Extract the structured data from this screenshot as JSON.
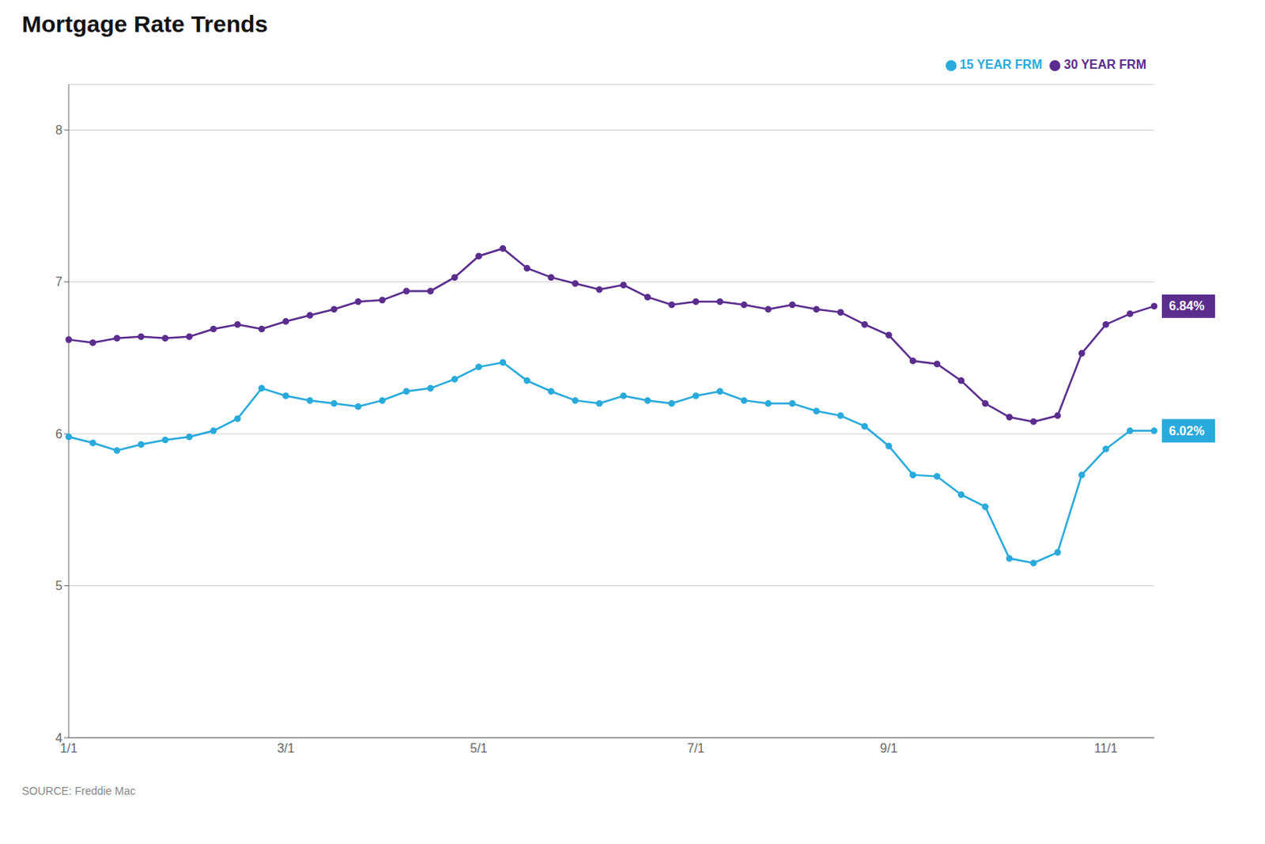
{
  "chart_data": {
    "type": "line",
    "title": "Mortgage Rate Trends",
    "source": "SOURCE: Freddie Mac",
    "categories": [
      "1/1",
      null,
      null,
      null,
      null,
      null,
      null,
      null,
      null,
      "3/1",
      null,
      null,
      null,
      null,
      null,
      null,
      null,
      "5/1",
      null,
      null,
      null,
      null,
      null,
      null,
      null,
      null,
      "7/1",
      null,
      null,
      null,
      null,
      null,
      null,
      null,
      "9/1",
      null,
      null,
      null,
      null,
      null,
      null,
      null,
      null,
      "11/1",
      null,
      null
    ],
    "ylim": [
      4,
      8.3
    ],
    "yticks": [
      4,
      5,
      6,
      7,
      8
    ],
    "grid": true,
    "legend": "top right",
    "series": [
      {
        "name": "30 YEAR FRM",
        "color": "#5B2D8E",
        "marker": "circle",
        "values": [
          6.62,
          6.6,
          6.63,
          6.64,
          6.63,
          6.64,
          6.69,
          6.72,
          6.69,
          6.74,
          6.78,
          6.82,
          6.87,
          6.88,
          6.94,
          6.94,
          7.03,
          7.17,
          7.22,
          7.09,
          7.03,
          6.99,
          6.95,
          6.98,
          6.9,
          6.85,
          6.87,
          6.87,
          6.85,
          6.82,
          6.85,
          6.82,
          6.8,
          6.72,
          6.65,
          6.48,
          6.46,
          6.35,
          6.2,
          6.11,
          6.08,
          6.12,
          6.53,
          6.72,
          6.79,
          6.84
        ],
        "value_labels": [
          null,
          null,
          null,
          null,
          null,
          null,
          null,
          null,
          null,
          null,
          null,
          null,
          null,
          null,
          null,
          null,
          null,
          null,
          null,
          null,
          null,
          null,
          null,
          null,
          null,
          null,
          null,
          null,
          null,
          null,
          null,
          null,
          null,
          null,
          null,
          null,
          null,
          null,
          null,
          null,
          null,
          null,
          null,
          null,
          null,
          "6.84%"
        ]
      },
      {
        "name": "15 YEAR FRM",
        "color": "#29AADC",
        "marker": "circle",
        "values": [
          5.98,
          5.94,
          5.89,
          5.93,
          5.96,
          5.98,
          6.02,
          6.1,
          6.3,
          6.25,
          6.22,
          6.2,
          6.18,
          6.22,
          6.28,
          6.3,
          6.36,
          6.44,
          6.47,
          6.35,
          6.28,
          6.22,
          6.2,
          6.25,
          6.22,
          6.2,
          6.25,
          6.28,
          6.22,
          6.2,
          6.2,
          6.15,
          6.12,
          6.05,
          5.92,
          5.73,
          5.72,
          5.6,
          5.52,
          5.18,
          5.15,
          5.22,
          5.73,
          5.9,
          6.02,
          6.02
        ],
        "value_labels": [
          null,
          null,
          null,
          null,
          null,
          null,
          null,
          null,
          null,
          null,
          null,
          null,
          null,
          null,
          null,
          null,
          null,
          null,
          null,
          null,
          null,
          null,
          null,
          null,
          null,
          null,
          null,
          null,
          null,
          null,
          null,
          null,
          null,
          null,
          null,
          null,
          null,
          null,
          null,
          null,
          null,
          null,
          null,
          null,
          null,
          "6.02%"
        ]
      }
    ]
  }
}
